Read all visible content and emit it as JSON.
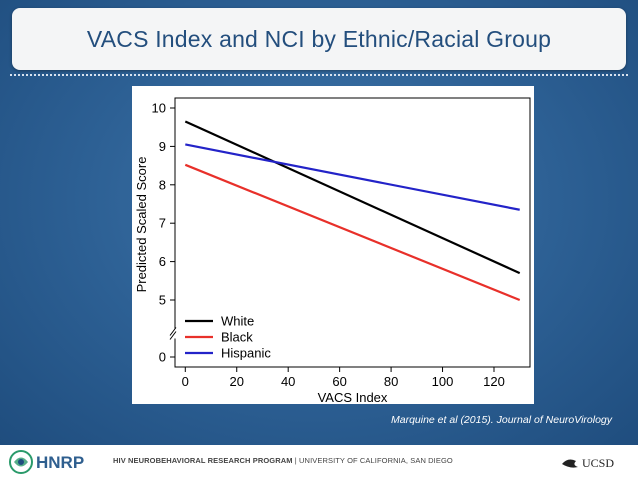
{
  "slide": {
    "title": "VACS Index and NCI by Ethnic/Racial Group",
    "citation": "Marquine et al (2015). Journal of NeuroVirology"
  },
  "footer": {
    "program": "HIV NEUROBEHAVIORAL RESEARCH PROGRAM",
    "separator": "|",
    "university": "UNIVERSITY OF CALIFORNIA, SAN DIEGO",
    "logo_text": "HNRP",
    "ucsd_text": "UCSD"
  },
  "chart_data": {
    "type": "line",
    "xlabel": "VACS Index",
    "ylabel": "Predicted Scaled Score",
    "x_ticks": [
      "0",
      "20",
      "40",
      "60",
      "80",
      "100",
      "120"
    ],
    "y_ticks": [
      "0",
      "5",
      "6",
      "7",
      "8",
      "9",
      "10"
    ],
    "xlim": [
      -4,
      134
    ],
    "ylim": [
      0,
      10.2
    ],
    "y_axis_break": true,
    "grid": false,
    "legend": "bottom-left",
    "series": [
      {
        "name": "White",
        "color": "#000000",
        "x": [
          0,
          130
        ],
        "y": [
          9.65,
          5.7
        ]
      },
      {
        "name": "Black",
        "color": "#e8302a",
        "x": [
          0,
          130
        ],
        "y": [
          8.52,
          5.0
        ]
      },
      {
        "name": "Hispanic",
        "color": "#2323c8",
        "x": [
          0,
          130
        ],
        "y": [
          9.05,
          7.35
        ]
      }
    ]
  }
}
